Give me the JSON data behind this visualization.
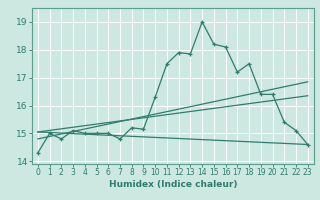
{
  "xlabel": "Humidex (Indice chaleur)",
  "bg_color": "#cce8e0",
  "grid_color": "#b0d8d0",
  "line_color": "#2e7d6e",
  "xlim": [
    -0.5,
    23.5
  ],
  "ylim": [
    13.9,
    19.5
  ],
  "yticks": [
    14,
    15,
    16,
    17,
    18,
    19
  ],
  "xticks": [
    0,
    1,
    2,
    3,
    4,
    5,
    6,
    7,
    8,
    9,
    10,
    11,
    12,
    13,
    14,
    15,
    16,
    17,
    18,
    19,
    20,
    21,
    22,
    23
  ],
  "series1_x": [
    0,
    1,
    2,
    3,
    4,
    5,
    6,
    7,
    8,
    9,
    10,
    11,
    12,
    13,
    14,
    15,
    16,
    17,
    18,
    19,
    20,
    21,
    22,
    23
  ],
  "series1_y": [
    14.3,
    15.0,
    14.8,
    15.1,
    15.0,
    15.0,
    15.0,
    14.8,
    15.2,
    15.15,
    16.3,
    17.5,
    17.9,
    17.85,
    19.0,
    18.2,
    18.1,
    17.2,
    17.5,
    16.4,
    16.4,
    15.4,
    15.1,
    14.6
  ],
  "series2_x": [
    0,
    23
  ],
  "series2_y": [
    14.8,
    16.85
  ],
  "series3_x": [
    0,
    23
  ],
  "series3_y": [
    15.05,
    16.35
  ],
  "series4_x": [
    0,
    23
  ],
  "series4_y": [
    15.05,
    14.6
  ]
}
